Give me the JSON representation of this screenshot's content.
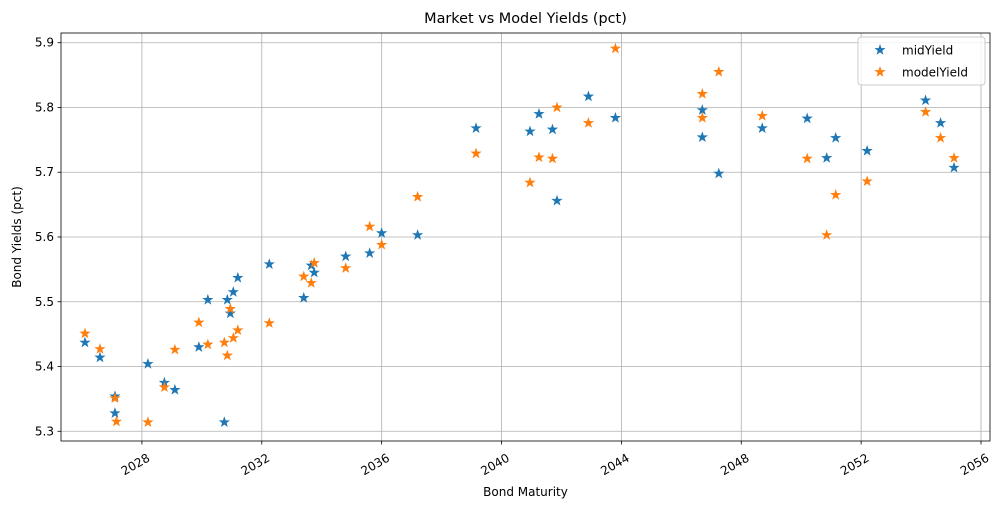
{
  "chart_data": {
    "type": "scatter",
    "title": "Market vs Model Yields (pct)",
    "xlabel": "Bond Maturity",
    "ylabel": "Bond Yields (pct)",
    "xlim": [
      2025.3,
      2056.3
    ],
    "ylim": [
      5.285,
      5.915
    ],
    "x_ticks": [
      2028,
      2032,
      2036,
      2040,
      2044,
      2048,
      2052,
      2056
    ],
    "y_ticks": [
      5.3,
      5.4,
      5.5,
      5.6,
      5.7,
      5.8,
      5.9
    ],
    "grid": true,
    "legend_position": "top-right",
    "marker": "star",
    "series": [
      {
        "name": "midYield",
        "color": "#1f77b4",
        "points": [
          [
            2026.1,
            5.437
          ],
          [
            2026.6,
            5.414
          ],
          [
            2027.1,
            5.354
          ],
          [
            2027.1,
            5.328
          ],
          [
            2028.2,
            5.404
          ],
          [
            2028.75,
            5.375
          ],
          [
            2029.1,
            5.364
          ],
          [
            2029.9,
            5.43
          ],
          [
            2030.2,
            5.503
          ],
          [
            2030.75,
            5.314
          ],
          [
            2030.85,
            5.503
          ],
          [
            2030.95,
            5.482
          ],
          [
            2031.05,
            5.515
          ],
          [
            2031.2,
            5.537
          ],
          [
            2032.25,
            5.558
          ],
          [
            2033.4,
            5.506
          ],
          [
            2033.65,
            5.556
          ],
          [
            2033.75,
            5.545
          ],
          [
            2034.8,
            5.57
          ],
          [
            2035.6,
            5.575
          ],
          [
            2036.0,
            5.606
          ],
          [
            2037.2,
            5.603
          ],
          [
            2039.15,
            5.768
          ],
          [
            2040.95,
            5.763
          ],
          [
            2041.25,
            5.79
          ],
          [
            2041.7,
            5.766
          ],
          [
            2041.85,
            5.656
          ],
          [
            2042.9,
            5.817
          ],
          [
            2043.8,
            5.784
          ],
          [
            2046.7,
            5.796
          ],
          [
            2046.7,
            5.754
          ],
          [
            2047.25,
            5.698
          ],
          [
            2048.7,
            5.768
          ],
          [
            2050.2,
            5.783
          ],
          [
            2050.85,
            5.722
          ],
          [
            2051.15,
            5.753
          ],
          [
            2052.2,
            5.733
          ],
          [
            2054.15,
            5.811
          ],
          [
            2054.65,
            5.776
          ],
          [
            2055.1,
            5.707
          ]
        ]
      },
      {
        "name": "modelYield",
        "color": "#ff7f0e",
        "points": [
          [
            2026.1,
            5.451
          ],
          [
            2026.6,
            5.427
          ],
          [
            2027.1,
            5.351
          ],
          [
            2027.15,
            5.315
          ],
          [
            2028.2,
            5.314
          ],
          [
            2028.75,
            5.368
          ],
          [
            2029.1,
            5.426
          ],
          [
            2029.9,
            5.468
          ],
          [
            2030.2,
            5.434
          ],
          [
            2030.75,
            5.437
          ],
          [
            2030.85,
            5.417
          ],
          [
            2030.95,
            5.489
          ],
          [
            2031.05,
            5.444
          ],
          [
            2031.2,
            5.456
          ],
          [
            2032.25,
            5.467
          ],
          [
            2033.4,
            5.539
          ],
          [
            2033.65,
            5.529
          ],
          [
            2033.75,
            5.56
          ],
          [
            2034.8,
            5.552
          ],
          [
            2035.6,
            5.616
          ],
          [
            2036.0,
            5.588
          ],
          [
            2037.2,
            5.662
          ],
          [
            2039.15,
            5.729
          ],
          [
            2040.95,
            5.684
          ],
          [
            2041.25,
            5.723
          ],
          [
            2041.7,
            5.721
          ],
          [
            2041.85,
            5.8
          ],
          [
            2042.9,
            5.776
          ],
          [
            2043.8,
            5.891
          ],
          [
            2046.7,
            5.821
          ],
          [
            2046.7,
            5.784
          ],
          [
            2047.25,
            5.855
          ],
          [
            2048.7,
            5.787
          ],
          [
            2050.2,
            5.721
          ],
          [
            2050.85,
            5.603
          ],
          [
            2051.15,
            5.665
          ],
          [
            2052.2,
            5.686
          ],
          [
            2054.15,
            5.793
          ],
          [
            2054.65,
            5.753
          ],
          [
            2055.1,
            5.722
          ]
        ]
      }
    ]
  }
}
